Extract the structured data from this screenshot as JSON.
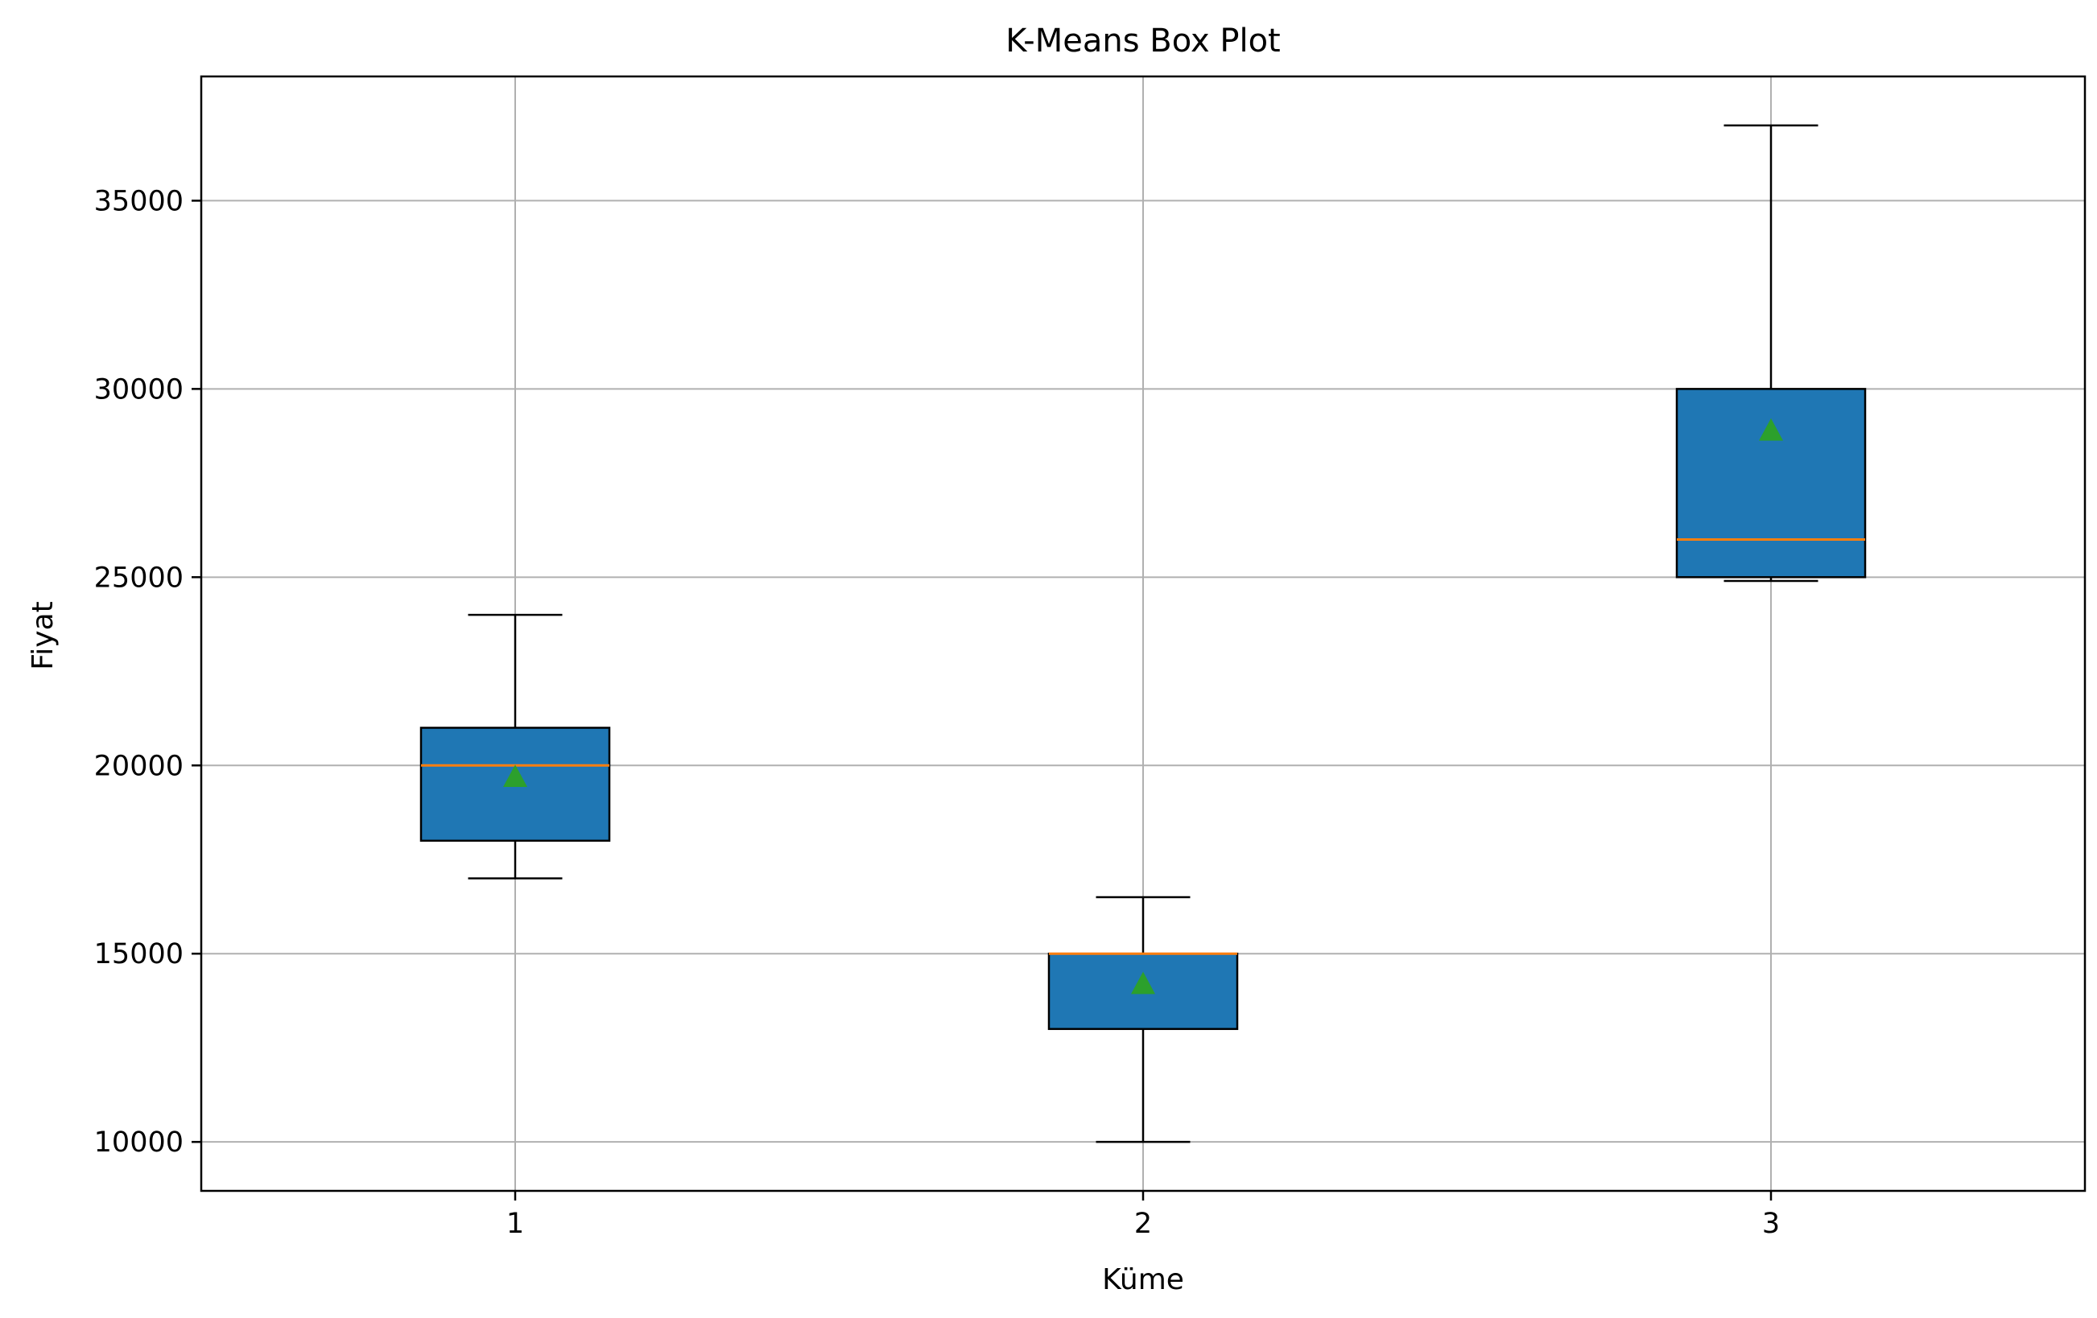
{
  "chart_data": {
    "type": "box",
    "title": "K-Means Box Plot",
    "xlabel": "Küme",
    "ylabel": "Fiyat",
    "categories": [
      "1",
      "2",
      "3"
    ],
    "ylim": [
      8700,
      38300
    ],
    "yticks": [
      10000,
      15000,
      20000,
      25000,
      30000,
      35000
    ],
    "ytick_labels": [
      "10000",
      "15000",
      "20000",
      "25000",
      "30000",
      "35000"
    ],
    "grid": true,
    "boxes": [
      {
        "category": "1",
        "whisker_low": 17000,
        "q1": 18000,
        "median": 20000,
        "q3": 21000,
        "whisker_high": 24000,
        "mean": 19700
      },
      {
        "category": "2",
        "whisker_low": 10000,
        "q1": 13000,
        "median": 15000,
        "q3": 15000,
        "whisker_high": 16500,
        "mean": 14200
      },
      {
        "category": "3",
        "whisker_low": 24900,
        "q1": 25000,
        "median": 26000,
        "q3": 30000,
        "whisker_high": 37000,
        "mean": 28900
      }
    ],
    "colors": {
      "box_fill": "#1f77b4",
      "median": "#ff7f0e",
      "mean_marker": "#2ca02c",
      "grid": "#b0b0b0",
      "axis": "#000000"
    }
  }
}
